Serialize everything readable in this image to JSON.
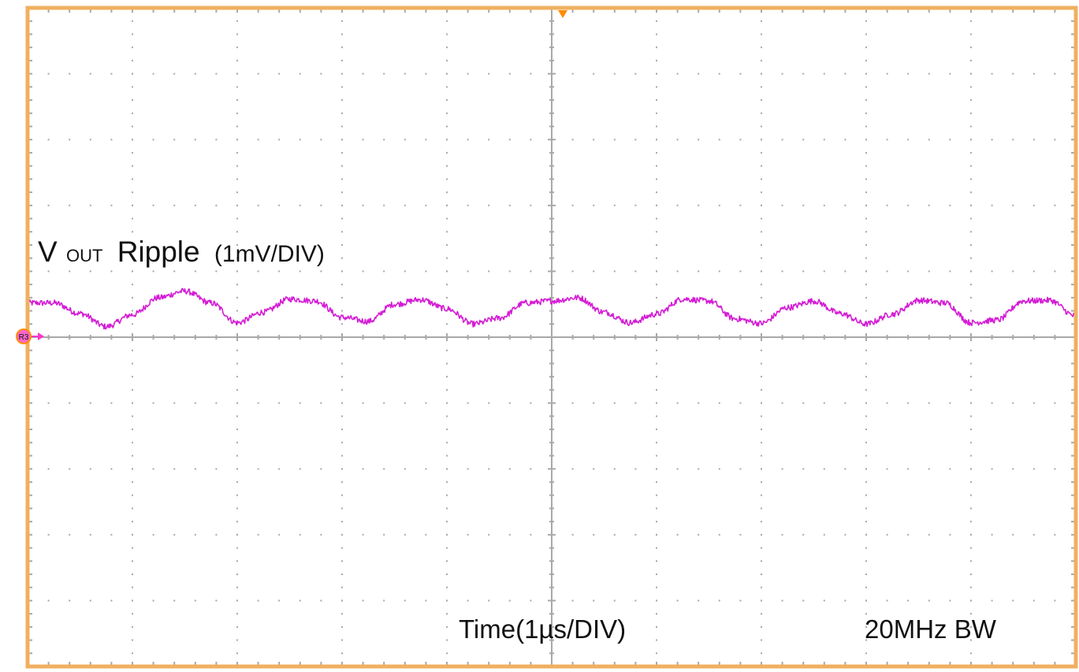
{
  "chart_data": {
    "type": "line",
    "title": "",
    "trace_label": {
      "v": "V",
      "sub": "OUT",
      "main": "Ripple",
      "scale": "(1mV/DIV)"
    },
    "xlabel": "Time(1µs/DIV)",
    "ylabel": "",
    "bandwidth_label": "20MHz BW",
    "channel_marker": "R3",
    "grid": true,
    "xlim": [
      0,
      10
    ],
    "ylim": [
      -5,
      5
    ],
    "x_units": "div",
    "y_units": "div",
    "series": [
      {
        "color": "#d41cd4",
        "x": [
          0,
          0.25,
          0.5,
          0.75,
          1,
          1.25,
          1.5,
          1.75,
          2,
          2.25,
          2.5,
          2.75,
          3,
          3.25,
          3.5,
          3.75,
          4,
          4.25,
          4.5,
          4.75,
          5,
          5.25,
          5.5,
          5.75,
          6,
          6.25,
          6.5,
          6.75,
          7,
          7.25,
          7.5,
          7.75,
          8,
          8.25,
          8.5,
          8.75,
          9,
          9.25,
          9.5,
          9.75,
          10
        ],
        "y": [
          0.52,
          0.52,
          0.36,
          0.16,
          0.34,
          0.6,
          0.7,
          0.52,
          0.22,
          0.38,
          0.58,
          0.55,
          0.3,
          0.24,
          0.5,
          0.57,
          0.43,
          0.2,
          0.29,
          0.52,
          0.55,
          0.6,
          0.38,
          0.22,
          0.35,
          0.58,
          0.55,
          0.28,
          0.21,
          0.45,
          0.55,
          0.36,
          0.2,
          0.35,
          0.56,
          0.52,
          0.22,
          0.26,
          0.55,
          0.56,
          0.32
        ]
      }
    ]
  },
  "colors": {
    "frame": "#f0b060",
    "grid": "#a8a8a8",
    "trace": "#d41cd4",
    "trigger": "#ff8c00",
    "marker_fill": "#ff66cc"
  }
}
